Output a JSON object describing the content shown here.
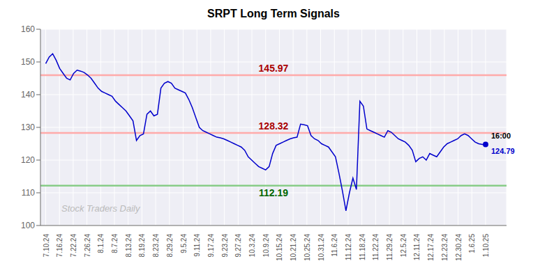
{
  "chart_data": {
    "type": "line",
    "title": "SRPT Long Term Signals",
    "watermark": "Stock Traders Daily",
    "color": "#0000cc",
    "bg_color": "#eeeef5",
    "grid": true,
    "values": [
      149.5,
      151.5,
      152.5,
      150.5,
      148.0,
      146.5,
      145.0,
      144.5,
      146.5,
      147.5,
      147.2,
      146.8,
      146.0,
      145.0,
      143.5,
      142.0,
      141.0,
      140.5,
      140.0,
      139.5,
      138.0,
      137.0,
      136.0,
      135.0,
      133.5,
      132.0,
      126.0,
      127.5,
      128.0,
      134.0,
      135.0,
      133.5,
      134.0,
      142.0,
      143.5,
      144.0,
      143.5,
      142.0,
      141.5,
      141.0,
      140.5,
      138.5,
      136.0,
      133.0,
      130.0,
      129.0,
      128.5,
      128.0,
      127.5,
      127.0,
      126.8,
      126.5,
      126.0,
      125.5,
      125.0,
      124.5,
      124.0,
      123.0,
      121.0,
      120.0,
      119.0,
      118.0,
      117.5,
      117.0,
      118.0,
      122.0,
      124.5,
      125.0,
      125.5,
      126.0,
      126.5,
      126.8,
      127.0,
      131.0,
      130.8,
      130.5,
      127.5,
      126.5,
      126.0,
      125.0,
      124.5,
      124.0,
      122.5,
      121.0,
      116.0,
      110.5,
      104.5,
      110.0,
      114.5,
      111.0,
      138.0,
      136.5,
      129.5,
      129.0,
      128.5,
      128.0,
      127.5,
      127.0,
      129.0,
      128.5,
      127.5,
      126.5,
      126.0,
      125.5,
      124.5,
      123.0,
      119.5,
      120.5,
      121.0,
      120.0,
      122.0,
      121.5,
      121.0,
      122.5,
      124.0,
      125.0,
      125.5,
      126.0,
      126.5,
      127.5,
      128.0,
      127.5,
      126.5,
      125.5,
      125.0,
      124.8,
      124.79
    ],
    "xlim": [
      -1.5,
      132
    ],
    "xticks": [
      {
        "value": 0,
        "label": "7.10.24"
      },
      {
        "value": 3.9375,
        "label": "7.16.24"
      },
      {
        "value": 7.875,
        "label": "7.22.24"
      },
      {
        "value": 11.8125,
        "label": "7.26.24"
      },
      {
        "value": 15.75,
        "label": "8.1.24"
      },
      {
        "value": 19.6875,
        "label": "8.7.24"
      },
      {
        "value": 23.625,
        "label": "8.13.24"
      },
      {
        "value": 27.5625,
        "label": "8.19.24"
      },
      {
        "value": 31.5,
        "label": "8.23.24"
      },
      {
        "value": 35.4375,
        "label": "8.29.24"
      },
      {
        "value": 39.375,
        "label": "9.5.24"
      },
      {
        "value": 43.3125,
        "label": "9.11.24"
      },
      {
        "value": 47.25,
        "label": "9.17.24"
      },
      {
        "value": 51.1875,
        "label": "9.23.24"
      },
      {
        "value": 55.125,
        "label": "9.27.24"
      },
      {
        "value": 59.0625,
        "label": "10.3.24"
      },
      {
        "value": 63,
        "label": "10.9.24"
      },
      {
        "value": 66.9375,
        "label": "10.15.24"
      },
      {
        "value": 70.875,
        "label": "10.21.24"
      },
      {
        "value": 74.8125,
        "label": "10.25.24"
      },
      {
        "value": 78.75,
        "label": "10.31.24"
      },
      {
        "value": 82.6875,
        "label": "11.6.24"
      },
      {
        "value": 86.625,
        "label": "11.12.24"
      },
      {
        "value": 90.5625,
        "label": "11.18.24"
      },
      {
        "value": 94.5,
        "label": "11.22.24"
      },
      {
        "value": 98.4375,
        "label": "11.29.24"
      },
      {
        "value": 102.375,
        "label": "12.5.24"
      },
      {
        "value": 106.3125,
        "label": "12.11.24"
      },
      {
        "value": 110.25,
        "label": "12.17.24"
      },
      {
        "value": 114.1875,
        "label": "12.23.24"
      },
      {
        "value": 118.125,
        "label": "12.30.24"
      },
      {
        "value": 122.0625,
        "label": "1.6.25"
      },
      {
        "value": 126,
        "label": "1.10.25"
      }
    ],
    "ylim": [
      100,
      160
    ],
    "yticks": [
      100,
      110,
      120,
      130,
      140,
      150,
      160
    ],
    "reference_lines": [
      {
        "value": 145.97,
        "label": "145.97",
        "color": "#ffaaaa",
        "label_color": "#aa0000"
      },
      {
        "value": 128.32,
        "label": "128.32",
        "color": "#ffaaaa",
        "label_color": "#aa0000"
      },
      {
        "value": 112.19,
        "label": "112.19",
        "color": "#88cc88",
        "label_color": "#006600"
      }
    ],
    "last_point": {
      "value": 124.79,
      "label": "124.79",
      "time": "16:00"
    }
  }
}
